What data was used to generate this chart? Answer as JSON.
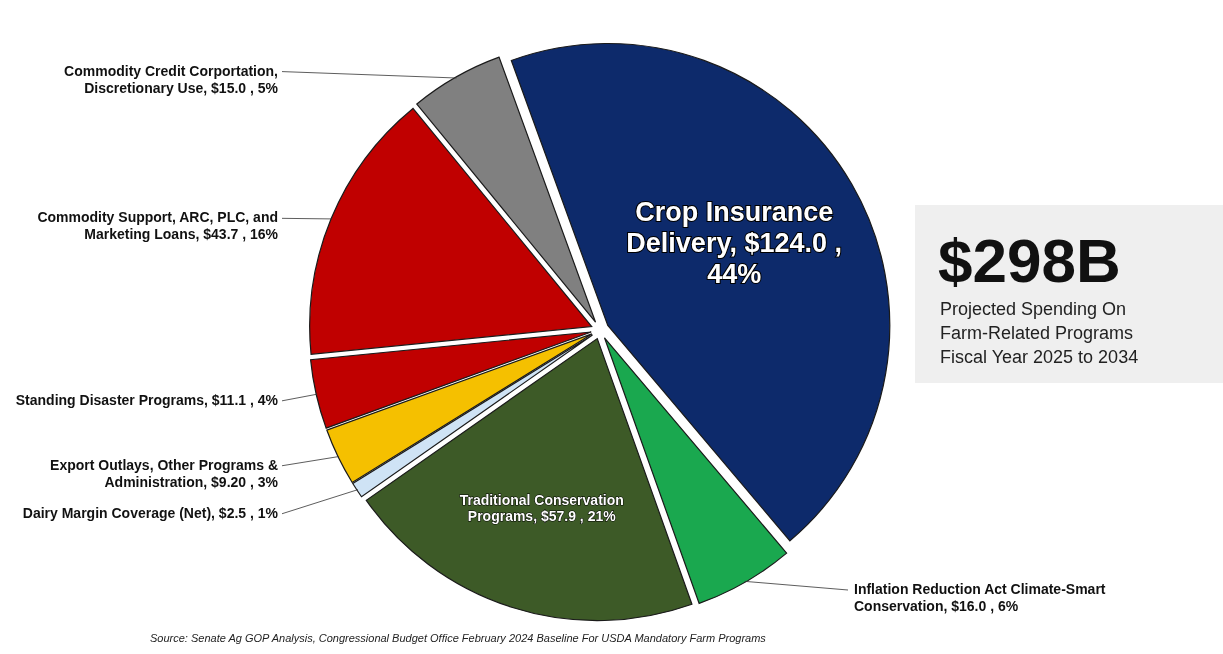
{
  "chart_data": {
    "type": "pie",
    "categories": [
      "Crop Insurance Delivery",
      "Inflation Reduction Act Climate-Smart Conservation",
      "Traditional Conservation Programs",
      "Dairy Margin Coverage (Net)",
      "Export Outlays, Other Programs & Administration",
      "Standing Disaster Programs",
      "Commodity Support, ARC, PLC, and Marketing Loans",
      "Commodity Credit Corportation, Discretionary Use"
    ],
    "values": [
      124.0,
      16.0,
      57.9,
      2.5,
      9.2,
      11.1,
      43.7,
      15.0
    ],
    "value_labels": [
      "$124.0 , 44%",
      "$16.0 , 6%",
      "$57.9 , 21%",
      "$2.5 , 1%",
      "$9.20 , 3%",
      "$11.1 , 4%",
      "$43.7 , 16%",
      "$15.0 , 5%"
    ],
    "colors": [
      "#0d2a6b",
      "#1aa84f",
      "#3d5a27",
      "#cfe3f5",
      "#f5c000",
      "#c00000",
      "#c00000",
      "#808080"
    ],
    "annotations": [
      "$298B",
      "Projected Spending On Farm-Related Programs Fiscal Year 2025 to 2034",
      "Source: Senate Ag GOP Analysis, Congressional Budget Office February 2024 Baseline For USDA Mandatory Farm Programs"
    ]
  }
}
